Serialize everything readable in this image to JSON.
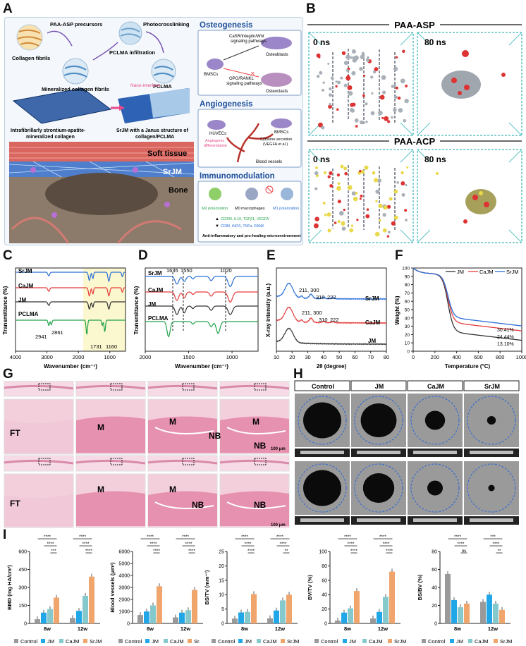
{
  "panels": {
    "A": {
      "label": "A",
      "schematic": {
        "collagen": "Collagen fibrils",
        "precursors": "PAA-ASP precursors",
        "photo": "Photocrosslinking",
        "infiltration": "PCLMA infiltration",
        "mineralized": "Mineralized collagen fibrils",
        "pclma": "PCLMA",
        "nano": "Nano-interface",
        "intra1": "Intrafibrillarly strontium-apatite-",
        "intra2": "mineralized collagen",
        "janus1": "SrJM with a Janus structure of",
        "janus2": "collagen/PCLMA"
      },
      "tissue": {
        "soft": "Soft tissue",
        "srjm": "SrJM",
        "bone": "Bone"
      },
      "osteo": {
        "title": "Osteogenesis",
        "path1a": "CaSR/integrin/Wnt",
        "path1b": "signaling pathways",
        "bmsc": "BMSCs",
        "osteoblasts": "Osteoblasts",
        "path2a": "OPG/RANKL",
        "path2b": "signaling pathways",
        "osteoclasts": "Osteoclasts"
      },
      "angio": {
        "title": "Angiogenesis",
        "huvec": "HUVECs",
        "bmsc": "BMSCs",
        "ang1": "Angiogenic",
        "ang2": "differentiation",
        "cyt1": "Cytokine secretion",
        "cyt2": "(VEGFA et al.)",
        "vessels": "Blood vessels"
      },
      "immuno": {
        "title": "Immunomodulation",
        "m2": "M2 polarization",
        "m0": "M0 macrophages",
        "m1": "M1 polarization",
        "up": "CD206, IL10, TGFβ1, VEGFA",
        "down": "CD80, iNOS, TNFα, RANK",
        "footer": "Anti-inflammatory and pro-healing microenvironment"
      }
    },
    "B": {
      "label": "B",
      "asp": "PAA-ASP",
      "acp": "PAA-ACP",
      "t0": "0 ns",
      "t80": "80 ns"
    },
    "C": {
      "label": "C",
      "series": [
        "SrJM",
        "CaJM",
        "JM",
        "PCLMA"
      ],
      "peaks": [
        "2941",
        "2861",
        "1731",
        "1160"
      ]
    },
    "D": {
      "label": "D",
      "series": [
        "SrJM",
        "CaJM",
        "JM",
        "PCLMA"
      ],
      "peaks": [
        "1635",
        "1550",
        "1020"
      ]
    },
    "E": {
      "label": "E",
      "srjm": "SrJM",
      "cajm": "CaJM",
      "jm": "JM",
      "p1": "211, 300",
      "p2": "310",
      "p3": "222"
    },
    "F": {
      "label": "F",
      "legend": [
        "JM",
        "CaJM",
        "SrJM"
      ],
      "vals": [
        "30.41%",
        "24.44%",
        "13.10%"
      ]
    },
    "G": {
      "label": "G",
      "ft": "FT",
      "m": "M",
      "nb": "NB",
      "scale": "100 μm"
    },
    "H": {
      "label": "H",
      "cols": [
        "Control",
        "JM",
        "CaJM",
        "SrJM"
      ]
    },
    "I": {
      "label": "I",
      "groups": [
        "8w",
        "12w"
      ],
      "legend": [
        "Control",
        "JM",
        "CaJM",
        "SrJM"
      ],
      "legend_trunc": "Sr.",
      "ns": "ns"
    }
  },
  "chart_data": [
    {
      "type": "line",
      "panel": "C",
      "xlabel": "Wavenumber (cm⁻¹)",
      "ylabel": "Transmittance (%)",
      "x_ticks": [
        "4000",
        "3000",
        "2000",
        "1000"
      ],
      "xlim": [
        4000,
        500
      ],
      "series": [
        {
          "name": "SrJM"
        },
        {
          "name": "CaJM"
        },
        {
          "name": "JM"
        },
        {
          "name": "PCLMA"
        }
      ]
    },
    {
      "type": "line",
      "panel": "D",
      "xlabel": "Wavenumber (cm⁻¹)",
      "ylabel": "Transmittance (%)",
      "x_ticks": [
        "2000",
        "1500",
        "1000"
      ],
      "xlim": [
        2000,
        700
      ],
      "series": [
        {
          "name": "SrJM"
        },
        {
          "name": "CaJM"
        },
        {
          "name": "JM"
        },
        {
          "name": "PCLMA"
        }
      ]
    },
    {
      "type": "line",
      "panel": "E",
      "xlabel": "2θ (degree)",
      "ylabel": "X-ray intensity (a.u.)",
      "x_ticks": [
        "10",
        "20",
        "30",
        "40",
        "50",
        "60",
        "70",
        "80"
      ],
      "xlim": [
        10,
        80
      ],
      "series": [
        {
          "name": "SrJM"
        },
        {
          "name": "CaJM"
        },
        {
          "name": "JM"
        }
      ]
    },
    {
      "type": "line",
      "panel": "F",
      "xlabel": "Temperature (°C)",
      "ylabel": "Weight (%)",
      "x_ticks": [
        "0",
        "200",
        "400",
        "600",
        "800",
        "1000"
      ],
      "y_ticks": [
        "0",
        "10",
        "20",
        "30",
        "40",
        "50",
        "60",
        "70",
        "80",
        "90",
        "100"
      ],
      "xlim": [
        0,
        1000
      ],
      "ylim": [
        0,
        100
      ],
      "series": [
        {
          "name": "JM",
          "final": 13.1
        },
        {
          "name": "CaJM",
          "final": 24.44
        },
        {
          "name": "SrJM",
          "final": 30.41
        }
      ]
    },
    {
      "type": "bar",
      "panel": "I-BMD",
      "ylabel": "BMD (mg HA/cm³)",
      "y_ticks": [
        "0",
        "150",
        "300",
        "450",
        "600"
      ],
      "ylim": [
        0,
        600
      ],
      "categories": [
        "8w",
        "12w"
      ],
      "series": [
        {
          "name": "Control",
          "values": [
            35,
            45
          ]
        },
        {
          "name": "JM",
          "values": [
            90,
            105
          ]
        },
        {
          "name": "CaJM",
          "values": [
            120,
            230
          ]
        },
        {
          "name": "SrJM",
          "values": [
            215,
            390
          ]
        }
      ],
      "sig": [
        [
          "****",
          "****",
          "***"
        ],
        [
          "****",
          "****",
          "****"
        ]
      ]
    },
    {
      "type": "bar",
      "panel": "I-Vessels",
      "ylabel": "Blood vessels (μm²)",
      "y_ticks": [
        "0",
        "1000",
        "2000",
        "3000",
        "4000",
        "5000",
        "6000"
      ],
      "ylim": [
        0,
        6000
      ],
      "categories": [
        "8w",
        "12w"
      ],
      "series": [
        {
          "name": "Control",
          "values": [
            700,
            500
          ]
        },
        {
          "name": "JM",
          "values": [
            1000,
            900
          ]
        },
        {
          "name": "CaJM",
          "values": [
            1500,
            1100
          ]
        },
        {
          "name": "SrJM",
          "values": [
            3100,
            2800
          ]
        }
      ],
      "sig": [
        [
          "****",
          "****",
          "****"
        ],
        [
          "****",
          "****",
          "****"
        ]
      ]
    },
    {
      "type": "bar",
      "panel": "I-BSTV",
      "ylabel": "BS/TV (mm⁻¹)",
      "y_ticks": [
        "0",
        "5",
        "10",
        "15",
        "20",
        "25"
      ],
      "ylim": [
        0,
        25
      ],
      "categories": [
        "8w",
        "12w"
      ],
      "series": [
        {
          "name": "Control",
          "values": [
            1.7,
            1.8
          ]
        },
        {
          "name": "JM",
          "values": [
            3.8,
            4.5
          ]
        },
        {
          "name": "CaJM",
          "values": [
            4.0,
            8.0
          ]
        },
        {
          "name": "SrJM",
          "values": [
            10.2,
            10.0
          ]
        }
      ],
      "sig": [
        [
          "****",
          "****",
          "****"
        ],
        [
          "****",
          "****",
          "**"
        ]
      ]
    },
    {
      "type": "bar",
      "panel": "I-BVTV",
      "ylabel": "BV/TV (%)",
      "y_ticks": [
        "0",
        "20",
        "40",
        "60",
        "80",
        "100"
      ],
      "ylim": [
        0,
        100
      ],
      "categories": [
        "8w",
        "12w"
      ],
      "series": [
        {
          "name": "Control",
          "values": [
            4,
            7
          ]
        },
        {
          "name": "JM",
          "values": [
            15,
            16
          ]
        },
        {
          "name": "CaJM",
          "values": [
            21,
            37
          ]
        },
        {
          "name": "SrJM",
          "values": [
            45,
            72
          ]
        }
      ],
      "sig": [
        [
          "****",
          "****",
          "****"
        ],
        [
          "****",
          "****",
          "****"
        ]
      ]
    },
    {
      "type": "bar",
      "panel": "I-BSBV",
      "ylabel": "BS/BV (%)",
      "y_ticks": [
        "0",
        "20",
        "40",
        "60",
        "80"
      ],
      "ylim": [
        0,
        80
      ],
      "categories": [
        "8w",
        "12w"
      ],
      "series": [
        {
          "name": "Control",
          "values": [
            55,
            24
          ]
        },
        {
          "name": "JM",
          "values": [
            26,
            32
          ]
        },
        {
          "name": "CaJM",
          "values": [
            18,
            22
          ]
        },
        {
          "name": "SrJM",
          "values": [
            22,
            15
          ]
        }
      ],
      "sig": [
        [
          "****",
          "****",
          "ns"
        ],
        [
          "***",
          "****",
          "**"
        ]
      ]
    }
  ],
  "colors": {
    "control": "#9a9a9a",
    "jm": "#21a7e8",
    "cajm": "#86c9cc",
    "srjm": "#f0a56c",
    "red": "#e53b3b",
    "blue": "#2b6fd6",
    "green": "#21a34a",
    "dark": "#222222"
  }
}
